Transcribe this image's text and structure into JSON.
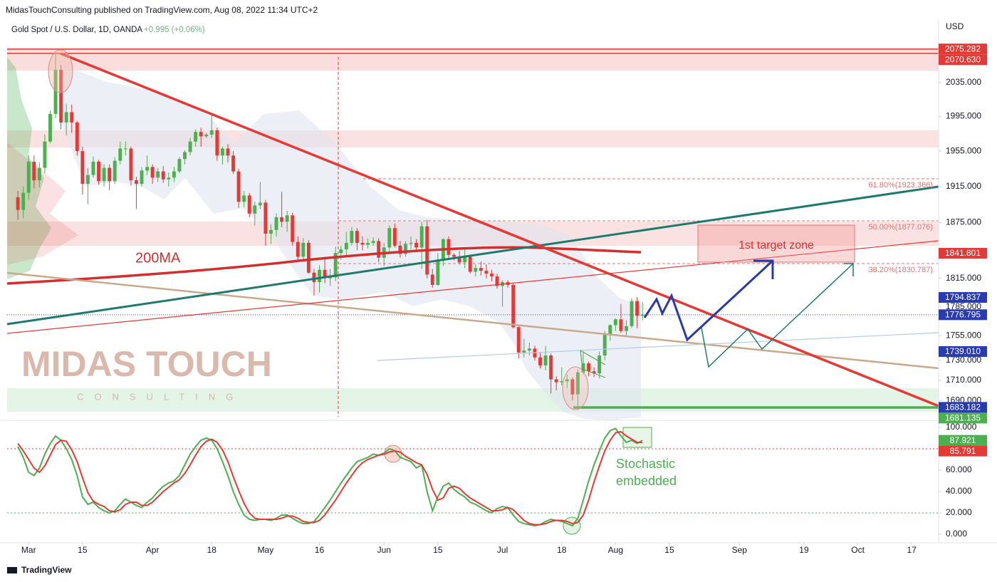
{
  "header": "MidasTouchConsulting published on TradingView.com, Aug 08, 2022 11:34 UTC+2",
  "footer": "TradingView",
  "chart_data": [
    {
      "type": "candlestick",
      "title": "Gold Spot / U.S. Dollar, 1D, OANDA",
      "change": "+0.995 (+0.06%)",
      "axis_label": "USD",
      "log_scale": true,
      "up_color": "#4caf50",
      "down_color": "#e53935",
      "x": [
        "2022-02-25",
        "2022-02-28",
        "2022-03-01",
        "2022-03-02",
        "2022-03-03",
        "2022-03-04",
        "2022-03-07",
        "2022-03-08",
        "2022-03-09",
        "2022-03-10",
        "2022-03-11",
        "2022-03-14",
        "2022-03-15",
        "2022-03-16",
        "2022-03-17",
        "2022-03-18",
        "2022-03-21",
        "2022-03-22",
        "2022-03-23",
        "2022-03-24",
        "2022-03-25",
        "2022-03-28",
        "2022-03-29",
        "2022-03-30",
        "2022-03-31",
        "2022-04-01",
        "2022-04-04",
        "2022-04-05",
        "2022-04-06",
        "2022-04-07",
        "2022-04-08",
        "2022-04-11",
        "2022-04-12",
        "2022-04-13",
        "2022-04-14",
        "2022-04-15",
        "2022-04-18",
        "2022-04-19",
        "2022-04-20",
        "2022-04-21",
        "2022-04-22",
        "2022-04-25",
        "2022-04-26",
        "2022-04-27",
        "2022-04-28",
        "2022-04-29",
        "2022-05-02",
        "2022-05-03",
        "2022-05-04",
        "2022-05-05",
        "2022-05-06",
        "2022-05-09",
        "2022-05-10",
        "2022-05-11",
        "2022-05-12",
        "2022-05-13",
        "2022-05-16",
        "2022-05-17",
        "2022-05-18",
        "2022-05-19",
        "2022-05-20",
        "2022-05-23",
        "2022-05-24",
        "2022-05-25",
        "2022-05-26",
        "2022-05-27",
        "2022-05-30",
        "2022-05-31",
        "2022-06-01",
        "2022-06-02",
        "2022-06-03",
        "2022-06-06",
        "2022-06-07",
        "2022-06-08",
        "2022-06-09",
        "2022-06-10",
        "2022-06-13",
        "2022-06-14",
        "2022-06-15",
        "2022-06-16",
        "2022-06-17",
        "2022-06-20",
        "2022-06-21",
        "2022-06-22",
        "2022-06-23",
        "2022-06-24",
        "2022-06-27",
        "2022-06-28",
        "2022-06-29",
        "2022-06-30",
        "2022-07-01",
        "2022-07-04",
        "2022-07-05",
        "2022-07-06",
        "2022-07-07",
        "2022-07-08",
        "2022-07-11",
        "2022-07-12",
        "2022-07-13",
        "2022-07-14",
        "2022-07-15",
        "2022-07-18",
        "2022-07-19",
        "2022-07-20",
        "2022-07-21",
        "2022-07-22",
        "2022-07-25",
        "2022-07-26",
        "2022-07-27",
        "2022-07-28",
        "2022-07-29",
        "2022-08-01",
        "2022-08-02",
        "2022-08-03",
        "2022-08-04",
        "2022-08-05",
        "2022-08-08"
      ],
      "open": [
        1903,
        1889,
        1908,
        1943,
        1922,
        1936,
        1966,
        1998,
        2050,
        1988,
        2000,
        1988,
        1955,
        1918,
        1928,
        1943,
        1921,
        1936,
        1921,
        1944,
        1958,
        1958,
        1922,
        1918,
        1933,
        1937,
        1925,
        1932,
        1923,
        1925,
        1932,
        1946,
        1954,
        1966,
        1977,
        1972,
        1974,
        1979,
        1950,
        1958,
        1950,
        1932,
        1898,
        1905,
        1885,
        1894,
        1897,
        1863,
        1867,
        1881,
        1876,
        1883,
        1854,
        1838,
        1853,
        1821,
        1811,
        1824,
        1815,
        1816,
        1842,
        1846,
        1853,
        1866,
        1853,
        1851,
        1853,
        1855,
        1837,
        1848,
        1869,
        1850,
        1841,
        1852,
        1853,
        1848,
        1871,
        1819,
        1808,
        1834,
        1857,
        1840,
        1838,
        1832,
        1838,
        1822,
        1826,
        1823,
        1820,
        1817,
        1807,
        1811,
        1808,
        1764,
        1738,
        1740,
        1742,
        1733,
        1725,
        1735,
        1711,
        1708,
        1709,
        1711,
        1696,
        1718,
        1727,
        1719,
        1717,
        1735,
        1756,
        1766,
        1772,
        1760,
        1765,
        1791,
        1775.8
      ],
      "high": [
        1910,
        1915,
        1950,
        1950,
        1942,
        1974,
        2002,
        2070,
        2056,
        2010,
        2009,
        1990,
        1960,
        1936,
        1949,
        1945,
        1940,
        1940,
        1948,
        1966,
        1966,
        1960,
        1926,
        1937,
        1950,
        1940,
        1936,
        1938,
        1931,
        1937,
        1948,
        1956,
        1970,
        1980,
        1982,
        1976,
        1998,
        1982,
        1960,
        1963,
        1955,
        1935,
        1910,
        1908,
        1898,
        1920,
        1900,
        1873,
        1885,
        1909,
        1888,
        1886,
        1860,
        1858,
        1856,
        1825,
        1829,
        1837,
        1825,
        1849,
        1850,
        1865,
        1870,
        1869,
        1860,
        1858,
        1859,
        1858,
        1853,
        1872,
        1874,
        1855,
        1855,
        1860,
        1857,
        1876,
        1878,
        1825,
        1842,
        1858,
        1860,
        1842,
        1844,
        1847,
        1840,
        1830,
        1833,
        1830,
        1824,
        1820,
        1813,
        1813,
        1810,
        1766,
        1752,
        1748,
        1745,
        1738,
        1745,
        1737,
        1714,
        1723,
        1716,
        1713,
        1721,
        1739,
        1729,
        1723,
        1739,
        1760,
        1767,
        1773,
        1788,
        1771,
        1794,
        1795,
        1790
      ],
      "low": [
        1878,
        1880,
        1900,
        1913,
        1914,
        1930,
        1964,
        1993,
        1980,
        1973,
        1976,
        1950,
        1906,
        1895,
        1925,
        1917,
        1915,
        1911,
        1918,
        1940,
        1950,
        1916,
        1890,
        1915,
        1928,
        1918,
        1920,
        1919,
        1915,
        1920,
        1930,
        1940,
        1950,
        1960,
        1960,
        1970,
        1970,
        1944,
        1940,
        1942,
        1929,
        1891,
        1892,
        1881,
        1872,
        1890,
        1850,
        1852,
        1860,
        1870,
        1865,
        1850,
        1832,
        1835,
        1820,
        1797,
        1800,
        1810,
        1807,
        1812,
        1835,
        1840,
        1850,
        1845,
        1845,
        1847,
        1850,
        1832,
        1828,
        1843,
        1848,
        1837,
        1838,
        1846,
        1843,
        1825,
        1815,
        1805,
        1807,
        1828,
        1835,
        1834,
        1830,
        1826,
        1820,
        1817,
        1818,
        1815,
        1812,
        1804,
        1785,
        1805,
        1763,
        1732,
        1733,
        1735,
        1730,
        1722,
        1720,
        1697,
        1700,
        1705,
        1702,
        1690,
        1681,
        1716,
        1714,
        1713,
        1712,
        1730,
        1750,
        1760,
        1758,
        1754,
        1763,
        1763,
        1771
      ],
      "close": [
        1889,
        1908,
        1943,
        1922,
        1936,
        1966,
        1998,
        2050,
        1988,
        2000,
        1988,
        1955,
        1918,
        1928,
        1943,
        1921,
        1936,
        1921,
        1944,
        1958,
        1958,
        1922,
        1918,
        1933,
        1937,
        1925,
        1932,
        1923,
        1925,
        1932,
        1946,
        1954,
        1966,
        1977,
        1972,
        1974,
        1979,
        1950,
        1958,
        1950,
        1932,
        1898,
        1905,
        1885,
        1894,
        1897,
        1863,
        1867,
        1881,
        1876,
        1883,
        1854,
        1838,
        1853,
        1821,
        1811,
        1824,
        1815,
        1816,
        1842,
        1846,
        1853,
        1866,
        1853,
        1851,
        1853,
        1855,
        1837,
        1848,
        1869,
        1850,
        1841,
        1852,
        1853,
        1848,
        1871,
        1819,
        1808,
        1834,
        1857,
        1840,
        1838,
        1832,
        1838,
        1822,
        1826,
        1823,
        1820,
        1817,
        1807,
        1811,
        1808,
        1764,
        1738,
        1740,
        1742,
        1733,
        1725,
        1735,
        1711,
        1708,
        1709,
        1711,
        1696,
        1718,
        1727,
        1719,
        1717,
        1735,
        1756,
        1766,
        1772,
        1760,
        1765,
        1791,
        1775.8,
        1776.795
      ],
      "last_color": "#2a3bb0",
      "xlim": [
        "2022-02-23",
        "2022-10-24"
      ],
      "xticks": [
        {
          "value": "2022-03-01",
          "label": "Mar"
        },
        {
          "value": "2022-03-15",
          "label": "15"
        },
        {
          "value": "2022-04-01",
          "label": "Apr"
        },
        {
          "value": "2022-04-18",
          "label": "18"
        },
        {
          "value": "2022-05-02",
          "label": "May"
        },
        {
          "value": "2022-05-16",
          "label": "16"
        },
        {
          "value": "2022-06-01",
          "label": "Jun"
        },
        {
          "value": "2022-06-15",
          "label": "15"
        },
        {
          "value": "2022-07-01",
          "label": "Jul"
        },
        {
          "value": "2022-07-18",
          "label": "18"
        },
        {
          "value": "2022-08-01",
          "label": "Aug"
        },
        {
          "value": "2022-08-15",
          "label": "15"
        },
        {
          "value": "2022-09-01",
          "label": "Sep"
        },
        {
          "value": "2022-09-19",
          "label": "19"
        },
        {
          "value": "2022-10-03",
          "label": "Oct"
        },
        {
          "value": "2022-10-17",
          "label": "17"
        }
      ],
      "ylim": [
        1674,
        2109
      ],
      "yticks": [
        {
          "value": 1690,
          "label": "1690.000"
        },
        {
          "value": 1710,
          "label": "1710.000"
        },
        {
          "value": 1730,
          "label": "1730.000"
        },
        {
          "value": 1755,
          "label": "1755.000"
        },
        {
          "value": 1785,
          "label": "1785.000"
        },
        {
          "value": 1815,
          "label": "1815.000"
        },
        {
          "value": 1875,
          "label": "1875.000"
        },
        {
          "value": 1915,
          "label": "1915.000"
        },
        {
          "value": 1955,
          "label": "1955.000"
        },
        {
          "value": 1995,
          "label": "1995.000"
        },
        {
          "value": 2035,
          "label": "2035.000"
        }
      ],
      "price_labels": [
        {
          "value": 2075.282,
          "color": "#e53935"
        },
        {
          "value": 2070.63,
          "label": "2070.630",
          "color": "#e53935"
        },
        {
          "value": 1841.801,
          "color": "#e53935"
        },
        {
          "value": 1794.837,
          "color": "#2a3bb0"
        },
        {
          "value": 1739.01,
          "label": "1739.010",
          "color": "#2a3bb0"
        },
        {
          "value": 1683.182,
          "color": "#2a3bb0"
        },
        {
          "value": 1681.135,
          "color": "#4caf50"
        }
      ],
      "annotations": {
        "ma_label": "200MA",
        "fib_labels": [
          "61.80%(1923.366)",
          "50.00%(1877.076)",
          "38.20%(1830.787)"
        ],
        "target_zone": "1st target zone",
        "watermark": "MIDAS TOUCH",
        "watermark_sub": "CONSULTING"
      }
    },
    {
      "type": "line",
      "annotation": [
        "Stochastic",
        "embedded"
      ],
      "ylim": [
        -6,
        106
      ],
      "yticks": [
        {
          "value": 0,
          "label": "0.000"
        },
        {
          "value": 20,
          "label": "20.000"
        },
        {
          "value": 40,
          "label": "40.000"
        },
        {
          "value": 60,
          "label": "60.000"
        },
        {
          "value": 80,
          "label": "80.000"
        },
        {
          "value": 100,
          "label": "100.000"
        }
      ],
      "series": [
        {
          "color": "#4caf50",
          "values": [
            82,
            72,
            58,
            55,
            62,
            75,
            85,
            92,
            88,
            80,
            70,
            55,
            35,
            28,
            30,
            25,
            22,
            20,
            22,
            28,
            33,
            30,
            27,
            25,
            30,
            34,
            40,
            45,
            48,
            50,
            55,
            65,
            75,
            82,
            88,
            90,
            88,
            80,
            68,
            55,
            40,
            28,
            18,
            14,
            13,
            14,
            14,
            13,
            15,
            18,
            18,
            15,
            12,
            10,
            10,
            12,
            18,
            25,
            32,
            40,
            48,
            55,
            62,
            68,
            70,
            72,
            75,
            74,
            76,
            80,
            78,
            72,
            70,
            68,
            62,
            65,
            40,
            22,
            35,
            45,
            48,
            42,
            38,
            35,
            30,
            28,
            25,
            22,
            20,
            24,
            26,
            25,
            18,
            12,
            10,
            9,
            8,
            9,
            12,
            14,
            13,
            12,
            10,
            8,
            15,
            32,
            50,
            65,
            78,
            90,
            97,
            99,
            92,
            86,
            88,
            85,
            87.921
          ]
        },
        {
          "color": "#e53935",
          "values": [
            85,
            78,
            70,
            62,
            58,
            64,
            74,
            84,
            88,
            87,
            79,
            68,
            53,
            39,
            31,
            28,
            26,
            22,
            21,
            23,
            28,
            30,
            30,
            27,
            27,
            30,
            35,
            40,
            44,
            48,
            51,
            57,
            65,
            74,
            82,
            87,
            89,
            86,
            79,
            68,
            54,
            41,
            29,
            20,
            15,
            14,
            14,
            14,
            14,
            15,
            17,
            17,
            15,
            12,
            11,
            11,
            13,
            18,
            25,
            32,
            40,
            48,
            55,
            62,
            67,
            70,
            72,
            74,
            75,
            77,
            78,
            77,
            73,
            70,
            67,
            65,
            56,
            42,
            32,
            34,
            43,
            45,
            43,
            38,
            34,
            31,
            28,
            25,
            22,
            22,
            23,
            25,
            23,
            18,
            13,
            10,
            9,
            9,
            10,
            12,
            13,
            13,
            12,
            10,
            11,
            18,
            32,
            49,
            64,
            78,
            88,
            95,
            96,
            92,
            89,
            86,
            85.791
          ]
        }
      ]
    }
  ]
}
